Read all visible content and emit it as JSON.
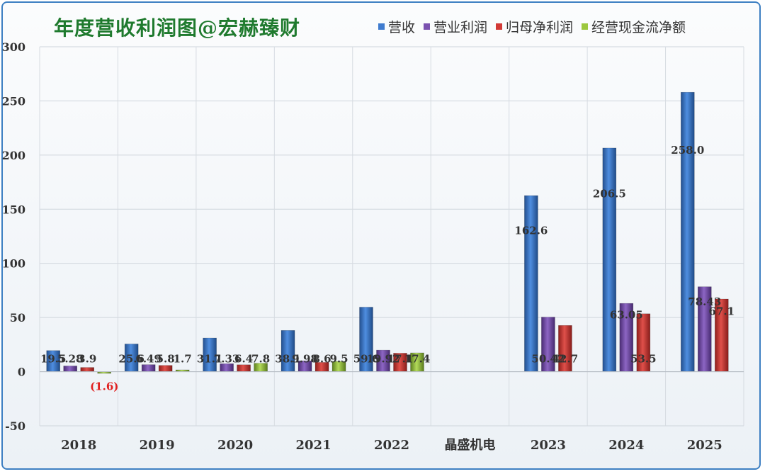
{
  "chart_data": {
    "type": "bar",
    "title": "年度营收利润图@宏赫臻财",
    "categories": [
      "2018",
      "2019",
      "2020",
      "2021",
      "2022",
      "晶盛机电",
      "2023",
      "2024",
      "2025"
    ],
    "ylim": [
      -50,
      300
    ],
    "yticks": [
      -50,
      0,
      50,
      100,
      150,
      200,
      250,
      300
    ],
    "grid": true,
    "legend_position": "top-right",
    "series": [
      {
        "name": "营收",
        "color": "#3f7ccf",
        "values": [
          19.5,
          25.6,
          31.1,
          38.1,
          59.6,
          null,
          162.6,
          206.5,
          258.0
        ],
        "labels": [
          "19.5",
          "25.6",
          "31.1",
          "38.1",
          "59.6",
          "",
          "162.6",
          "206.5",
          "258.0"
        ]
      },
      {
        "name": "营业利润",
        "color": "#7b52b0",
        "values": [
          5.28,
          6.49,
          7.33,
          9.98,
          19.92,
          null,
          50.42,
          63.05,
          78.43
        ],
        "labels": [
          "5.28",
          "6.49",
          "7.33",
          "9.98",
          "19.92",
          "",
          "50.42",
          "63.05",
          "78.43"
        ]
      },
      {
        "name": "归母净利润",
        "color": "#d23a36",
        "values": [
          3.9,
          5.8,
          6.4,
          8.6,
          17.1,
          null,
          42.7,
          53.5,
          67.1
        ],
        "labels": [
          "3.9",
          "5.8",
          "6.4",
          "8.6",
          "17.1",
          "",
          "42.7",
          "53.5",
          "67.1"
        ]
      },
      {
        "name": "经营现金流净额",
        "color": "#9cc83e",
        "values": [
          -1.6,
          1.7,
          7.8,
          9.5,
          17.4,
          null,
          null,
          null,
          null
        ],
        "labels": [
          "(1.6)",
          "1.7",
          "7.8",
          "9.5",
          "17.4",
          "",
          "",
          "",
          ""
        ]
      }
    ]
  }
}
